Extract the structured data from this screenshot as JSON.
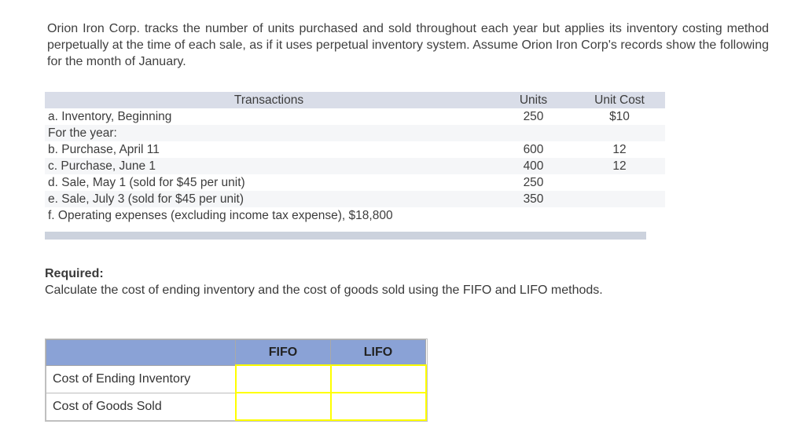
{
  "intro": {
    "text": "Orion Iron Corp. tracks the number of units purchased and sold throughout each year but applies its inventory costing method perpetually at the time of each sale, as if it uses perpetual inventory system. Assume Orion Iron Corp's records show the following for the month of January."
  },
  "transactions_table": {
    "headers": {
      "transactions": "Transactions",
      "units": "Units",
      "unit_cost": "Unit Cost"
    },
    "rows": [
      {
        "label": "a. Inventory, Beginning",
        "units": "250",
        "unit_cost": "$10"
      },
      {
        "label": "For the year:",
        "units": "",
        "unit_cost": ""
      },
      {
        "label": "b. Purchase, April 11",
        "units": "600",
        "unit_cost": "12"
      },
      {
        "label": "c. Purchase, June 1",
        "units": "400",
        "unit_cost": "12"
      },
      {
        "label": "d. Sale, May 1 (sold for $45 per unit)",
        "units": "250",
        "unit_cost": ""
      },
      {
        "label": "e. Sale, July 3 (sold for $45 per unit)",
        "units": "350",
        "unit_cost": ""
      },
      {
        "label": "f. Operating expenses (excluding income tax expense), $18,800",
        "units": "",
        "unit_cost": ""
      }
    ]
  },
  "required": {
    "label": "Required:",
    "text": "Calculate the cost of ending inventory and the cost of goods sold using the FIFO and LIFO methods."
  },
  "answer_table": {
    "headers": {
      "corner": "",
      "fifo": "FIFO",
      "lifo": "LIFO"
    },
    "rows": [
      {
        "label": "Cost of Ending Inventory",
        "fifo_value": "",
        "lifo_value": ""
      },
      {
        "label": "Cost of Goods Sold",
        "fifo_value": "",
        "lifo_value": ""
      }
    ]
  },
  "colors": {
    "tx_header_bg": "#d9dde8",
    "tx_stripe_bg": "#f5f6f8",
    "tx_footer_bar": "#ccd2dd",
    "answer_header_bg": "#8aa2d6",
    "answer_input_border": "#ffff00"
  }
}
